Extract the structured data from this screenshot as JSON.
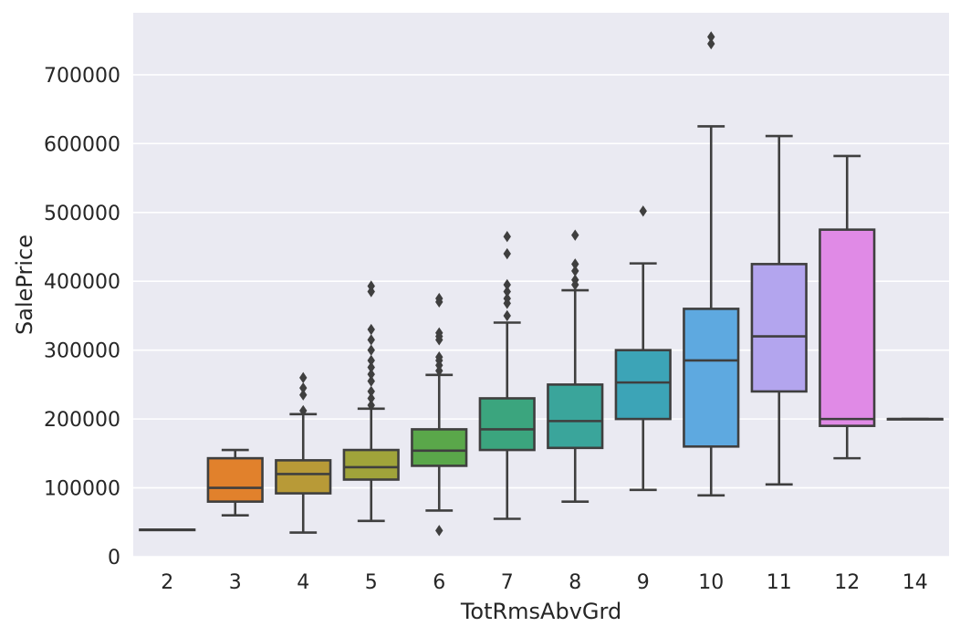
{
  "chart_data": {
    "type": "box",
    "xlabel": "TotRmsAbvGrd",
    "ylabel": "SalePrice",
    "ylim": [
      0,
      790000
    ],
    "yticks": [
      0,
      100000,
      200000,
      300000,
      400000,
      500000,
      600000,
      700000
    ],
    "ytick_labels": [
      "0",
      "100000",
      "200000",
      "300000",
      "400000",
      "500000",
      "600000",
      "700000"
    ],
    "grid": true,
    "background": "#eaeaf2",
    "gridline_color": "#ffffff",
    "edge_color": "#3f3f3f",
    "categories": [
      "2",
      "3",
      "4",
      "5",
      "6",
      "7",
      "8",
      "9",
      "10",
      "11",
      "12",
      "14"
    ],
    "boxes": [
      {
        "category": "2",
        "color": "#3274a1",
        "q1": 39300,
        "median": 39300,
        "q3": 39300,
        "whislo": 39300,
        "whishi": 39300,
        "fliers": []
      },
      {
        "category": "3",
        "color": "#e1812c",
        "q1": 80000,
        "median": 100000,
        "q3": 143000,
        "whislo": 60000,
        "whishi": 155000,
        "fliers": []
      },
      {
        "category": "4",
        "color": "#b89a37",
        "q1": 92000,
        "median": 120000,
        "q3": 140000,
        "whislo": 35000,
        "whishi": 207000,
        "fliers": [
          212000,
          235000,
          245000,
          260000
        ]
      },
      {
        "category": "5",
        "color": "#a0a43a",
        "q1": 112000,
        "median": 130000,
        "q3": 155000,
        "whislo": 52000,
        "whishi": 215000,
        "fliers": [
          220000,
          230000,
          240000,
          255000,
          265000,
          275000,
          285000,
          300000,
          315000,
          330000,
          385000,
          393000
        ]
      },
      {
        "category": "6",
        "color": "#5aa74a",
        "q1": 132000,
        "median": 154000,
        "q3": 185000,
        "whislo": 67000,
        "whishi": 264000,
        "fliers": [
          38000,
          270000,
          278000,
          285000,
          290000,
          315000,
          320000,
          325000,
          370000,
          375000
        ]
      },
      {
        "category": "7",
        "color": "#3ba57e",
        "q1": 155000,
        "median": 185000,
        "q3": 230000,
        "whislo": 55000,
        "whishi": 340000,
        "fliers": [
          350000,
          368000,
          375000,
          385000,
          395000,
          440000,
          465000
        ]
      },
      {
        "category": "8",
        "color": "#3aa59b",
        "q1": 158000,
        "median": 197000,
        "q3": 250000,
        "whislo": 80000,
        "whishi": 387000,
        "fliers": [
          395000,
          402000,
          415000,
          425000,
          467000
        ]
      },
      {
        "category": "9",
        "color": "#3ca4b7",
        "q1": 200000,
        "median": 253000,
        "q3": 300000,
        "whislo": 97000,
        "whishi": 426000,
        "fliers": [
          502000
        ]
      },
      {
        "category": "10",
        "color": "#5ea9e0",
        "q1": 160000,
        "median": 285000,
        "q3": 360000,
        "whislo": 89000,
        "whishi": 625000,
        "fliers": [
          745000,
          755000
        ]
      },
      {
        "category": "11",
        "color": "#b3a5ee",
        "q1": 240000,
        "median": 320000,
        "q3": 425000,
        "whislo": 105000,
        "whishi": 611000,
        "fliers": []
      },
      {
        "category": "12",
        "color": "#e08ae6",
        "q1": 190000,
        "median": 200000,
        "q3": 475000,
        "whislo": 143000,
        "whishi": 582000,
        "fliers": []
      },
      {
        "category": "14",
        "color": "#e58bc2",
        "q1": 200000,
        "median": 200000,
        "q3": 200000,
        "whislo": 200000,
        "whishi": 200000,
        "fliers": []
      }
    ]
  }
}
